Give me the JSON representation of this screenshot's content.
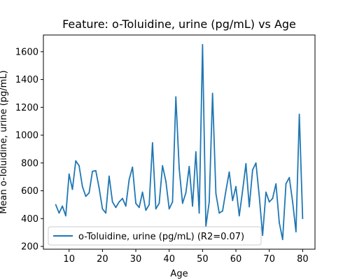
{
  "chart_data": {
    "type": "line",
    "title": "Feature: o-Toluidine, urine (pg/mL) vs Age",
    "xlabel": "Age",
    "ylabel": "Mean o-Toluidine, urine (pg/mL)",
    "xlim": [
      2.3,
      83.7
    ],
    "ylim": [
      180,
      1720
    ],
    "x_ticks": [
      10,
      20,
      30,
      40,
      50,
      60,
      70,
      80
    ],
    "y_ticks": [
      200,
      400,
      600,
      800,
      1000,
      1200,
      1400,
      1600
    ],
    "grid": false,
    "legend_position": "lower left",
    "colors": {
      "series": "#1f77b4"
    },
    "series": [
      {
        "name": "o-Toluidine, urine (pg/mL) (R2=0.07)",
        "x": [
          6,
          7,
          8,
          9,
          10,
          11,
          12,
          13,
          14,
          15,
          16,
          17,
          18,
          19,
          20,
          21,
          22,
          23,
          24,
          25,
          26,
          27,
          28,
          29,
          30,
          31,
          32,
          33,
          34,
          35,
          36,
          37,
          38,
          39,
          40,
          41,
          42,
          43,
          44,
          45,
          46,
          47,
          48,
          49,
          50,
          51,
          52,
          53,
          54,
          55,
          56,
          57,
          58,
          59,
          60,
          61,
          62,
          63,
          64,
          65,
          66,
          67,
          68,
          69,
          70,
          71,
          72,
          73,
          74,
          75,
          76,
          77,
          78,
          79,
          80
        ],
        "y": [
          500,
          440,
          490,
          420,
          720,
          610,
          815,
          780,
          630,
          560,
          585,
          740,
          745,
          620,
          470,
          440,
          705,
          520,
          480,
          520,
          545,
          490,
          680,
          770,
          510,
          480,
          590,
          460,
          500,
          945,
          470,
          510,
          780,
          670,
          470,
          520,
          1275,
          760,
          510,
          585,
          775,
          490,
          880,
          440,
          1650,
          345,
          520,
          1300,
          580,
          440,
          455,
          600,
          735,
          530,
          630,
          420,
          600,
          795,
          485,
          750,
          800,
          560,
          280,
          590,
          520,
          545,
          650,
          370,
          250,
          650,
          695,
          520,
          305,
          1150,
          400
        ]
      }
    ]
  }
}
